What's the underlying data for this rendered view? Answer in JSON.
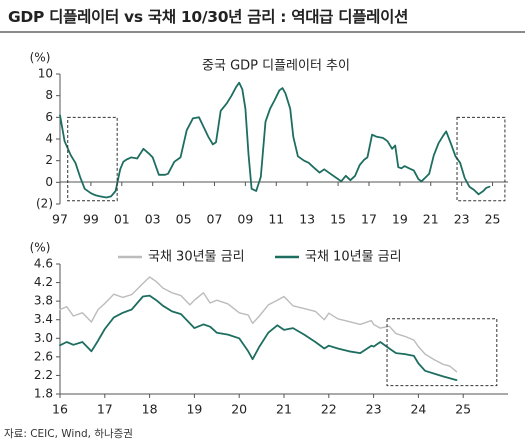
{
  "header": {
    "title": "GDP 디플레이터 vs 국채 10/30년 금리 : 역대급 디플레이션"
  },
  "footer": {
    "source": "자료: CEIC, Wind, 하나증권"
  },
  "colors": {
    "teal": "#1d6e60",
    "gray": "#bcbcbc",
    "axis": "#555555"
  },
  "chart_data": [
    {
      "type": "line",
      "title": "중국 GDP 디플레이터 추이",
      "ylabel": "(%)",
      "ylim": [
        -2,
        10
      ],
      "yticks": [
        -2,
        0,
        2,
        4,
        6,
        8,
        10
      ],
      "ytick_labels": [
        "(2)",
        "0",
        "2",
        "4",
        "6",
        "8",
        "10"
      ],
      "xlim": [
        1997,
        2026
      ],
      "xticks": [
        1997,
        1999,
        2001,
        2003,
        2005,
        2007,
        2009,
        2011,
        2013,
        2015,
        2017,
        2019,
        2021,
        2023,
        2025
      ],
      "xtick_labels": [
        "97",
        "99",
        "01",
        "03",
        "05",
        "07",
        "09",
        "11",
        "13",
        "15",
        "17",
        "19",
        "21",
        "23",
        "25"
      ],
      "grid": false,
      "series": [
        {
          "color": "#1d6e60",
          "x": [
            1997.0,
            1997.3,
            1997.7,
            1998.0,
            1998.3,
            1998.6,
            1999.0,
            1999.3,
            1999.6,
            2000.0,
            2000.3,
            2000.6,
            2000.9,
            2001.1,
            2001.3,
            2001.6,
            2002.0,
            2002.4,
            2002.8,
            2003.0,
            2003.4,
            2003.8,
            2004.0,
            2004.4,
            2004.8,
            2005.2,
            2005.6,
            2006.0,
            2006.3,
            2006.6,
            2006.9,
            2007.1,
            2007.4,
            2007.8,
            2008.1,
            2008.4,
            2008.6,
            2008.8,
            2009.0,
            2009.2,
            2009.4,
            2009.7,
            2010.0,
            2010.3,
            2010.6,
            2010.9,
            2011.2,
            2011.4,
            2011.6,
            2011.9,
            2012.1,
            2012.4,
            2012.8,
            2013.1,
            2013.4,
            2013.8,
            2014.1,
            2014.5,
            2014.9,
            2015.2,
            2015.5,
            2015.8,
            2016.1,
            2016.4,
            2016.7,
            2016.9,
            2017.2,
            2017.5,
            2017.9,
            2018.2,
            2018.5,
            2018.7,
            2018.9,
            2019.1,
            2019.3,
            2019.6,
            2019.9,
            2020.2,
            2020.4,
            2020.7,
            2020.9,
            2021.2,
            2021.5,
            2021.8,
            2022.0,
            2022.3,
            2022.6,
            2022.9,
            2023.2,
            2023.5,
            2023.8,
            2024.1,
            2024.4,
            2024.6,
            2024.8
          ],
          "values": [
            6.2,
            3.8,
            2.5,
            1.8,
            0.5,
            -0.6,
            -1.0,
            -1.2,
            -1.3,
            -1.4,
            -1.3,
            -0.8,
            1.2,
            1.9,
            2.1,
            2.3,
            2.2,
            3.1,
            2.6,
            2.3,
            0.7,
            0.7,
            0.8,
            1.9,
            2.3,
            4.8,
            5.9,
            6.0,
            5.1,
            4.2,
            3.5,
            3.7,
            6.6,
            7.3,
            8.0,
            8.8,
            9.2,
            8.6,
            6.8,
            2.6,
            -0.6,
            -0.8,
            0.5,
            5.6,
            6.8,
            7.6,
            8.5,
            8.7,
            8.2,
            6.8,
            4.2,
            2.4,
            2.0,
            1.8,
            1.4,
            0.9,
            1.2,
            0.8,
            0.4,
            0.1,
            0.6,
            0.2,
            0.6,
            1.6,
            2.1,
            2.3,
            4.4,
            4.2,
            4.1,
            3.8,
            3.1,
            3.4,
            1.4,
            1.3,
            1.5,
            1.3,
            1.1,
            0.3,
            0.1,
            0.5,
            0.8,
            2.5,
            3.6,
            4.3,
            4.7,
            3.6,
            2.4,
            1.8,
            0.4,
            -0.4,
            -0.7,
            -1.1,
            -0.8,
            -0.5,
            -0.4
          ]
        }
      ],
      "annotations": [
        {
          "type": "dashed-box",
          "x": [
            1997.5,
            2000.7
          ],
          "y": [
            -1.7,
            6.0
          ]
        },
        {
          "type": "dashed-box",
          "x": [
            2022.7,
            2025.8
          ],
          "y": [
            -1.7,
            6.0
          ]
        }
      ]
    },
    {
      "type": "line",
      "ylabel": "(%)",
      "ylim": [
        1.8,
        4.6
      ],
      "yticks": [
        1.8,
        2.2,
        2.6,
        3.0,
        3.4,
        3.8,
        4.2,
        4.6
      ],
      "ytick_labels": [
        "1.8",
        "2.2",
        "2.6",
        "3.0",
        "3.4",
        "3.8",
        "4.2",
        "4.6"
      ],
      "xlim": [
        2016,
        2026
      ],
      "xticks": [
        2016,
        2017,
        2018,
        2019,
        2020,
        2021,
        2022,
        2023,
        2024,
        2025
      ],
      "xtick_labels": [
        "16",
        "17",
        "18",
        "19",
        "20",
        "21",
        "22",
        "23",
        "24",
        "25"
      ],
      "grid": false,
      "legend": "top",
      "series": [
        {
          "name": "국채 30년물 금리",
          "color": "#bcbcbc",
          "x": [
            2016.0,
            2016.15,
            2016.3,
            2016.5,
            2016.7,
            2016.85,
            2017.0,
            2017.2,
            2017.4,
            2017.6,
            2017.85,
            2018.0,
            2018.15,
            2018.3,
            2018.5,
            2018.7,
            2018.9,
            2019.0,
            2019.2,
            2019.35,
            2019.5,
            2019.75,
            2020.0,
            2020.2,
            2020.3,
            2020.45,
            2020.65,
            2020.85,
            2021.0,
            2021.2,
            2021.45,
            2021.7,
            2021.9,
            2022.0,
            2022.2,
            2022.45,
            2022.7,
            2022.95,
            2023.0,
            2023.15,
            2023.35,
            2023.5,
            2023.7,
            2023.9,
            2024.0,
            2024.15,
            2024.35,
            2024.55,
            2024.7,
            2024.85
          ],
          "values": [
            3.62,
            3.68,
            3.48,
            3.55,
            3.35,
            3.62,
            3.75,
            3.95,
            3.88,
            3.94,
            4.18,
            4.32,
            4.22,
            4.08,
            3.98,
            3.92,
            3.72,
            3.82,
            3.98,
            3.76,
            3.82,
            3.74,
            3.55,
            3.5,
            3.32,
            3.48,
            3.72,
            3.82,
            3.9,
            3.7,
            3.64,
            3.58,
            3.4,
            3.54,
            3.42,
            3.36,
            3.3,
            3.38,
            3.3,
            3.22,
            3.26,
            3.1,
            3.04,
            2.96,
            2.82,
            2.66,
            2.54,
            2.44,
            2.4,
            2.28
          ]
        },
        {
          "name": "국채 10년물 금리",
          "color": "#1d6e60",
          "x": [
            2016.0,
            2016.15,
            2016.3,
            2016.5,
            2016.7,
            2016.85,
            2017.0,
            2017.2,
            2017.4,
            2017.6,
            2017.85,
            2018.0,
            2018.15,
            2018.3,
            2018.5,
            2018.7,
            2018.9,
            2019.0,
            2019.2,
            2019.35,
            2019.5,
            2019.75,
            2020.0,
            2020.2,
            2020.3,
            2020.45,
            2020.65,
            2020.85,
            2021.0,
            2021.2,
            2021.45,
            2021.7,
            2021.9,
            2022.0,
            2022.2,
            2022.45,
            2022.7,
            2022.95,
            2023.0,
            2023.15,
            2023.35,
            2023.5,
            2023.7,
            2023.9,
            2024.0,
            2024.15,
            2024.35,
            2024.55,
            2024.7,
            2024.85
          ],
          "values": [
            2.85,
            2.92,
            2.86,
            2.92,
            2.72,
            2.95,
            3.2,
            3.45,
            3.55,
            3.62,
            3.9,
            3.92,
            3.82,
            3.7,
            3.58,
            3.52,
            3.32,
            3.22,
            3.3,
            3.25,
            3.12,
            3.08,
            3.0,
            2.72,
            2.55,
            2.82,
            3.12,
            3.28,
            3.18,
            3.22,
            3.08,
            2.92,
            2.78,
            2.84,
            2.78,
            2.72,
            2.68,
            2.84,
            2.82,
            2.92,
            2.78,
            2.68,
            2.66,
            2.62,
            2.46,
            2.3,
            2.24,
            2.18,
            2.14,
            2.1
          ]
        }
      ],
      "annotations": [
        {
          "type": "dashed-box",
          "x": [
            2023.3,
            2025.75
          ],
          "y": [
            1.98,
            3.42
          ]
        }
      ]
    }
  ]
}
